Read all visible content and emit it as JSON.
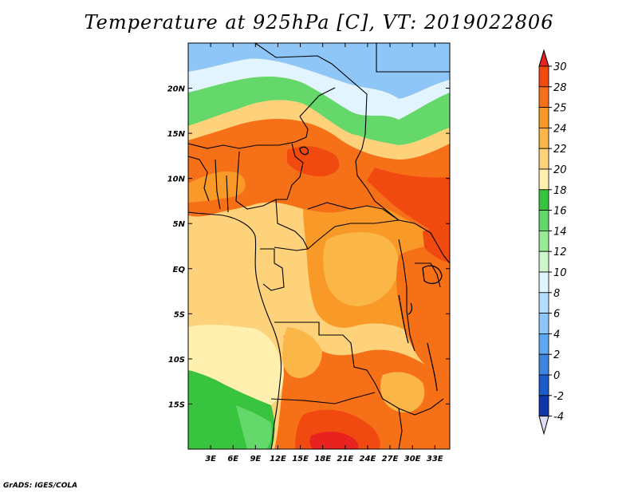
{
  "title": "Temperature at 925hPa [C], VT: 2019022806",
  "credit": "GrADS: IGES/COLA",
  "map": {
    "lon_range": [
      0,
      35
    ],
    "lat_range": [
      -20,
      25
    ],
    "lon_ticks": [
      "3E",
      "6E",
      "9E",
      "12E",
      "15E",
      "18E",
      "21E",
      "24E",
      "27E",
      "30E",
      "33E"
    ],
    "lat_ticks": [
      "20N",
      "15N",
      "10N",
      "5N",
      "EQ",
      "5S",
      "10S",
      "15S"
    ],
    "field": "Temperature",
    "units": "C"
  },
  "colorbar": {
    "levels": [
      "30",
      "28",
      "25",
      "24",
      "22",
      "20",
      "18",
      "16",
      "14",
      "12",
      "10",
      "8",
      "6",
      "4",
      "2",
      "0",
      "-2",
      "-4"
    ],
    "colors": {
      "above_30": "#e8221e",
      "28_30": "#f04a10",
      "25_28": "#f67018",
      "24_25": "#f99a28",
      "22_24": "#fbb648",
      "20_22": "#fdd27a",
      "18_20": "#fff0b0",
      "16_18": "#38c43e",
      "14_16": "#64d86a",
      "12_14": "#98ea94",
      "10_12": "#cff6ca",
      "8_10": "#e2f4ff",
      "6_8": "#b6dcfc",
      "4_6": "#8ec6f8",
      "2_4": "#5ea8f0",
      "0_2": "#3d84e0",
      "m2_0": "#1c5cc8",
      "m4_m2": "#0e36a8",
      "below_m4": "#dcdcf4"
    }
  }
}
